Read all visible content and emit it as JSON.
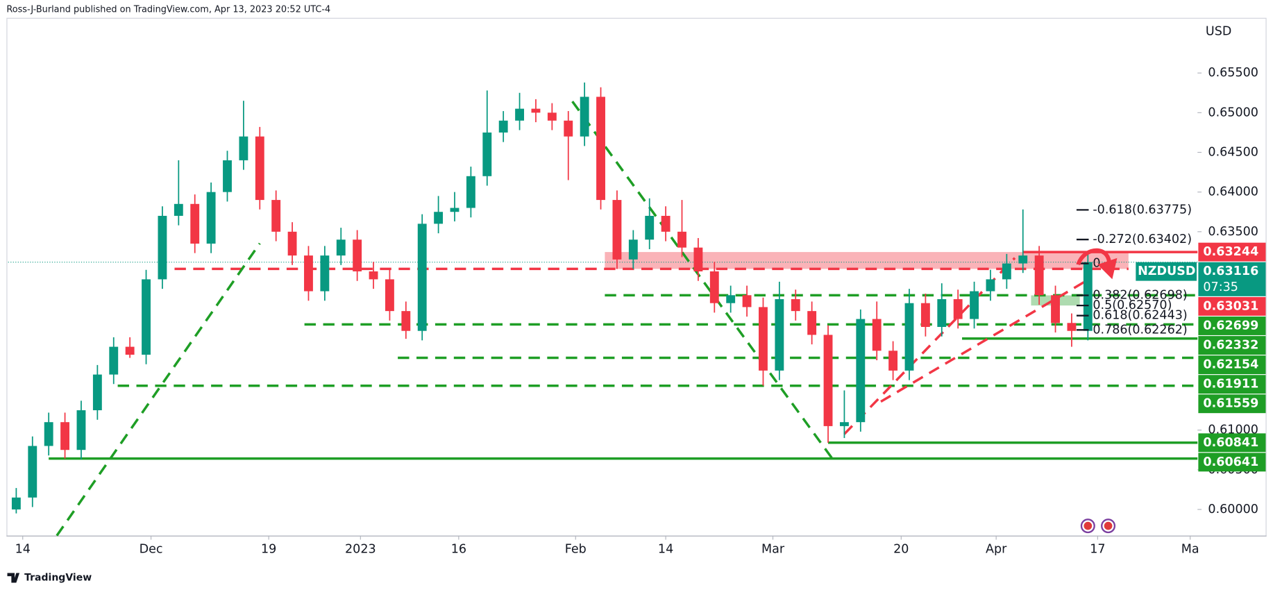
{
  "header": {
    "publisher": "Ross-J-Burland published on TradingView.com, Apr 13, 2023 20:52 UTC-4"
  },
  "footer": {
    "brand": "TradingView"
  },
  "chart_data": {
    "type": "candlestick",
    "symbol": "NZDUSD",
    "currency": "USD",
    "countdown": "07:35",
    "last_price": 0.63116,
    "last_color": "#089981",
    "up_color": "#089981",
    "down_color": "#f23645",
    "open": [
      0.6,
      0.6015,
      0.608,
      0.611,
      0.6075,
      0.6125,
      0.617,
      0.6205,
      0.6195,
      0.629,
      0.637,
      0.6385,
      0.6335,
      0.64,
      0.644,
      0.647,
      0.639,
      0.635,
      0.632,
      0.6275,
      0.632,
      0.634,
      0.63,
      0.629,
      0.625,
      0.6225,
      0.636,
      0.6375,
      0.638,
      0.642,
      0.6475,
      0.649,
      0.6505,
      0.65,
      0.649,
      0.647,
      0.652,
      0.639,
      0.6315,
      0.634,
      0.637,
      0.635,
      0.633,
      0.63,
      0.626,
      0.627,
      0.6255,
      0.6175,
      0.6265,
      0.625,
      0.622,
      0.6105,
      0.611,
      0.624,
      0.62,
      0.6175,
      0.626,
      0.623,
      0.6265,
      0.624,
      0.6275,
      0.629,
      0.631,
      0.632,
      0.627,
      0.6235,
      0.6225
    ],
    "high": [
      0.6027,
      0.6092,
      0.6122,
      0.6122,
      0.6137,
      0.6182,
      0.6217,
      0.6217,
      0.6302,
      0.6382,
      0.644,
      0.6397,
      0.6412,
      0.6452,
      0.6515,
      0.6482,
      0.6402,
      0.6362,
      0.6332,
      0.6332,
      0.6355,
      0.6352,
      0.6312,
      0.6302,
      0.6262,
      0.6372,
      0.6395,
      0.64,
      0.6432,
      0.6528,
      0.6502,
      0.6525,
      0.6517,
      0.6512,
      0.6502,
      0.6538,
      0.6532,
      0.6402,
      0.6352,
      0.6392,
      0.6382,
      0.639,
      0.6342,
      0.6312,
      0.6282,
      0.6282,
      0.6267,
      0.6287,
      0.6277,
      0.6262,
      0.6232,
      0.615,
      0.6252,
      0.6262,
      0.6212,
      0.6278,
      0.6272,
      0.6285,
      0.6277,
      0.6287,
      0.6302,
      0.6322,
      0.6378,
      0.6332,
      0.6282,
      0.6247,
      0.6323
    ],
    "low": [
      0.5995,
      0.6003,
      0.6068,
      0.6064,
      0.6063,
      0.6113,
      0.6158,
      0.6191,
      0.6183,
      0.6278,
      0.6358,
      0.6323,
      0.6323,
      0.6388,
      0.6428,
      0.6378,
      0.6338,
      0.6308,
      0.6263,
      0.6263,
      0.6308,
      0.6288,
      0.6278,
      0.6238,
      0.6215,
      0.6213,
      0.6348,
      0.6363,
      0.6368,
      0.6408,
      0.6463,
      0.6478,
      0.6488,
      0.6478,
      0.6415,
      0.6458,
      0.6378,
      0.6303,
      0.6303,
      0.6328,
      0.6338,
      0.6318,
      0.6288,
      0.6248,
      0.6248,
      0.6243,
      0.6156,
      0.6163,
      0.6238,
      0.6208,
      0.6084,
      0.609,
      0.6098,
      0.6188,
      0.6163,
      0.6163,
      0.6218,
      0.6218,
      0.6228,
      0.6228,
      0.6263,
      0.6278,
      0.6298,
      0.6258,
      0.6223,
      0.6205,
      0.6213
    ],
    "close": [
      0.6015,
      0.608,
      0.611,
      0.6075,
      0.6125,
      0.617,
      0.6205,
      0.6195,
      0.629,
      0.637,
      0.6385,
      0.6335,
      0.64,
      0.644,
      0.647,
      0.639,
      0.635,
      0.632,
      0.6275,
      0.632,
      0.634,
      0.63,
      0.629,
      0.625,
      0.6225,
      0.636,
      0.6375,
      0.638,
      0.642,
      0.6475,
      0.649,
      0.6505,
      0.65,
      0.649,
      0.647,
      0.652,
      0.639,
      0.6315,
      0.634,
      0.637,
      0.635,
      0.633,
      0.63,
      0.626,
      0.627,
      0.6255,
      0.6175,
      0.6265,
      0.625,
      0.622,
      0.6105,
      0.611,
      0.624,
      0.62,
      0.6175,
      0.626,
      0.623,
      0.6265,
      0.624,
      0.6275,
      0.629,
      0.631,
      0.632,
      0.627,
      0.6235,
      0.6225,
      0.63116
    ],
    "xlim": [
      -0.5,
      72.5
    ],
    "xticks": [
      {
        "value": 0.4,
        "label": "14"
      },
      {
        "value": 8.3,
        "label": "Dec"
      },
      {
        "value": 15.55,
        "label": "19"
      },
      {
        "value": 21.2,
        "label": "2023"
      },
      {
        "value": 27.25,
        "label": "16"
      },
      {
        "value": 34.45,
        "label": "Feb"
      },
      {
        "value": 40.0,
        "label": "14"
      },
      {
        "value": 46.6,
        "label": "Mar"
      },
      {
        "value": 54.5,
        "label": "20"
      },
      {
        "value": 60.35,
        "label": "Apr"
      },
      {
        "value": 66.6,
        "label": "17"
      },
      {
        "value": 72.3,
        "label": "Ma"
      }
    ],
    "ylim": [
      0.5967,
      0.6642
    ],
    "yticks": [
      {
        "value": 0.655,
        "label": "0.65500"
      },
      {
        "value": 0.65,
        "label": "0.65000"
      },
      {
        "value": 0.645,
        "label": "0.64500"
      },
      {
        "value": 0.64,
        "label": "0.64000"
      },
      {
        "value": 0.635,
        "label": "0.63500"
      },
      {
        "value": 0.61,
        "label": "0.61000"
      },
      {
        "value": 0.605,
        "label": "0.60500"
      },
      {
        "value": 0.6,
        "label": "0.60000"
      }
    ],
    "levels": [
      {
        "value": 0.63244,
        "color": "#f23645",
        "dashed": false,
        "start": 62.0
      },
      {
        "value": 0.63031,
        "color": "#f23645",
        "dashed": true,
        "start": 9.75,
        "end": 68.5
      },
      {
        "value": 0.62699,
        "color": "#1e9e25",
        "dashed": true,
        "start": 36.25
      },
      {
        "value": 0.62332,
        "color": "#1e9e25",
        "dashed": true,
        "start": 17.75
      },
      {
        "value": 0.62154,
        "color": "#1e9e25",
        "dashed": false,
        "start": 58.25
      },
      {
        "value": 0.61911,
        "color": "#1e9e25",
        "dashed": true,
        "start": 23.5
      },
      {
        "value": 0.61559,
        "color": "#1e9e25",
        "dashed": true,
        "start": 6.25
      },
      {
        "value": 0.60841,
        "color": "#1e9e25",
        "dashed": false,
        "start": 50
      },
      {
        "value": 0.60641,
        "color": "#1e9e25",
        "dashed": false,
        "start": 2
      }
    ],
    "zone": {
      "low": 0.63031,
      "high": 0.63244,
      "start": 36.25,
      "end": 68.5,
      "color": "rgba(242,54,69,0.38)"
    },
    "fib": [
      {
        "value": 0.63775,
        "label": "-0.618(0.63775)"
      },
      {
        "value": 0.63402,
        "label": "-0.272(0.63402)"
      },
      {
        "value": 0.631,
        "label": "0"
      },
      {
        "value": 0.62698,
        "label": "0.382(0.62698)"
      },
      {
        "value": 0.6257,
        "label": "0.5(0.62570)"
      },
      {
        "value": 0.62443,
        "label": "0.618(0.62443)"
      },
      {
        "value": 0.62262,
        "label": "0.786(0.62262)"
      }
    ],
    "fib_zone": {
      "low": 0.6257,
      "high": 0.62698,
      "start": 62.5,
      "end": 65.5,
      "color": "rgba(76,175,80,0.45)"
    },
    "trendlines": [
      {
        "points": [
          [
            2.5,
            0.5967
          ],
          [
            15,
            0.63353
          ]
        ],
        "color": "#1e9e25"
      },
      {
        "points": [
          [
            34.25,
            0.65142
          ],
          [
            50.25,
            0.60643
          ]
        ],
        "color": "#1e9e25"
      },
      {
        "points": [
          [
            51,
            0.6095
          ],
          [
            61.5,
            0.63169
          ]
        ],
        "color": "#f23645"
      },
      {
        "points": [
          [
            53.25,
            0.61359
          ],
          [
            66,
            0.62893
          ]
        ],
        "color": "#f23645"
      }
    ]
  }
}
